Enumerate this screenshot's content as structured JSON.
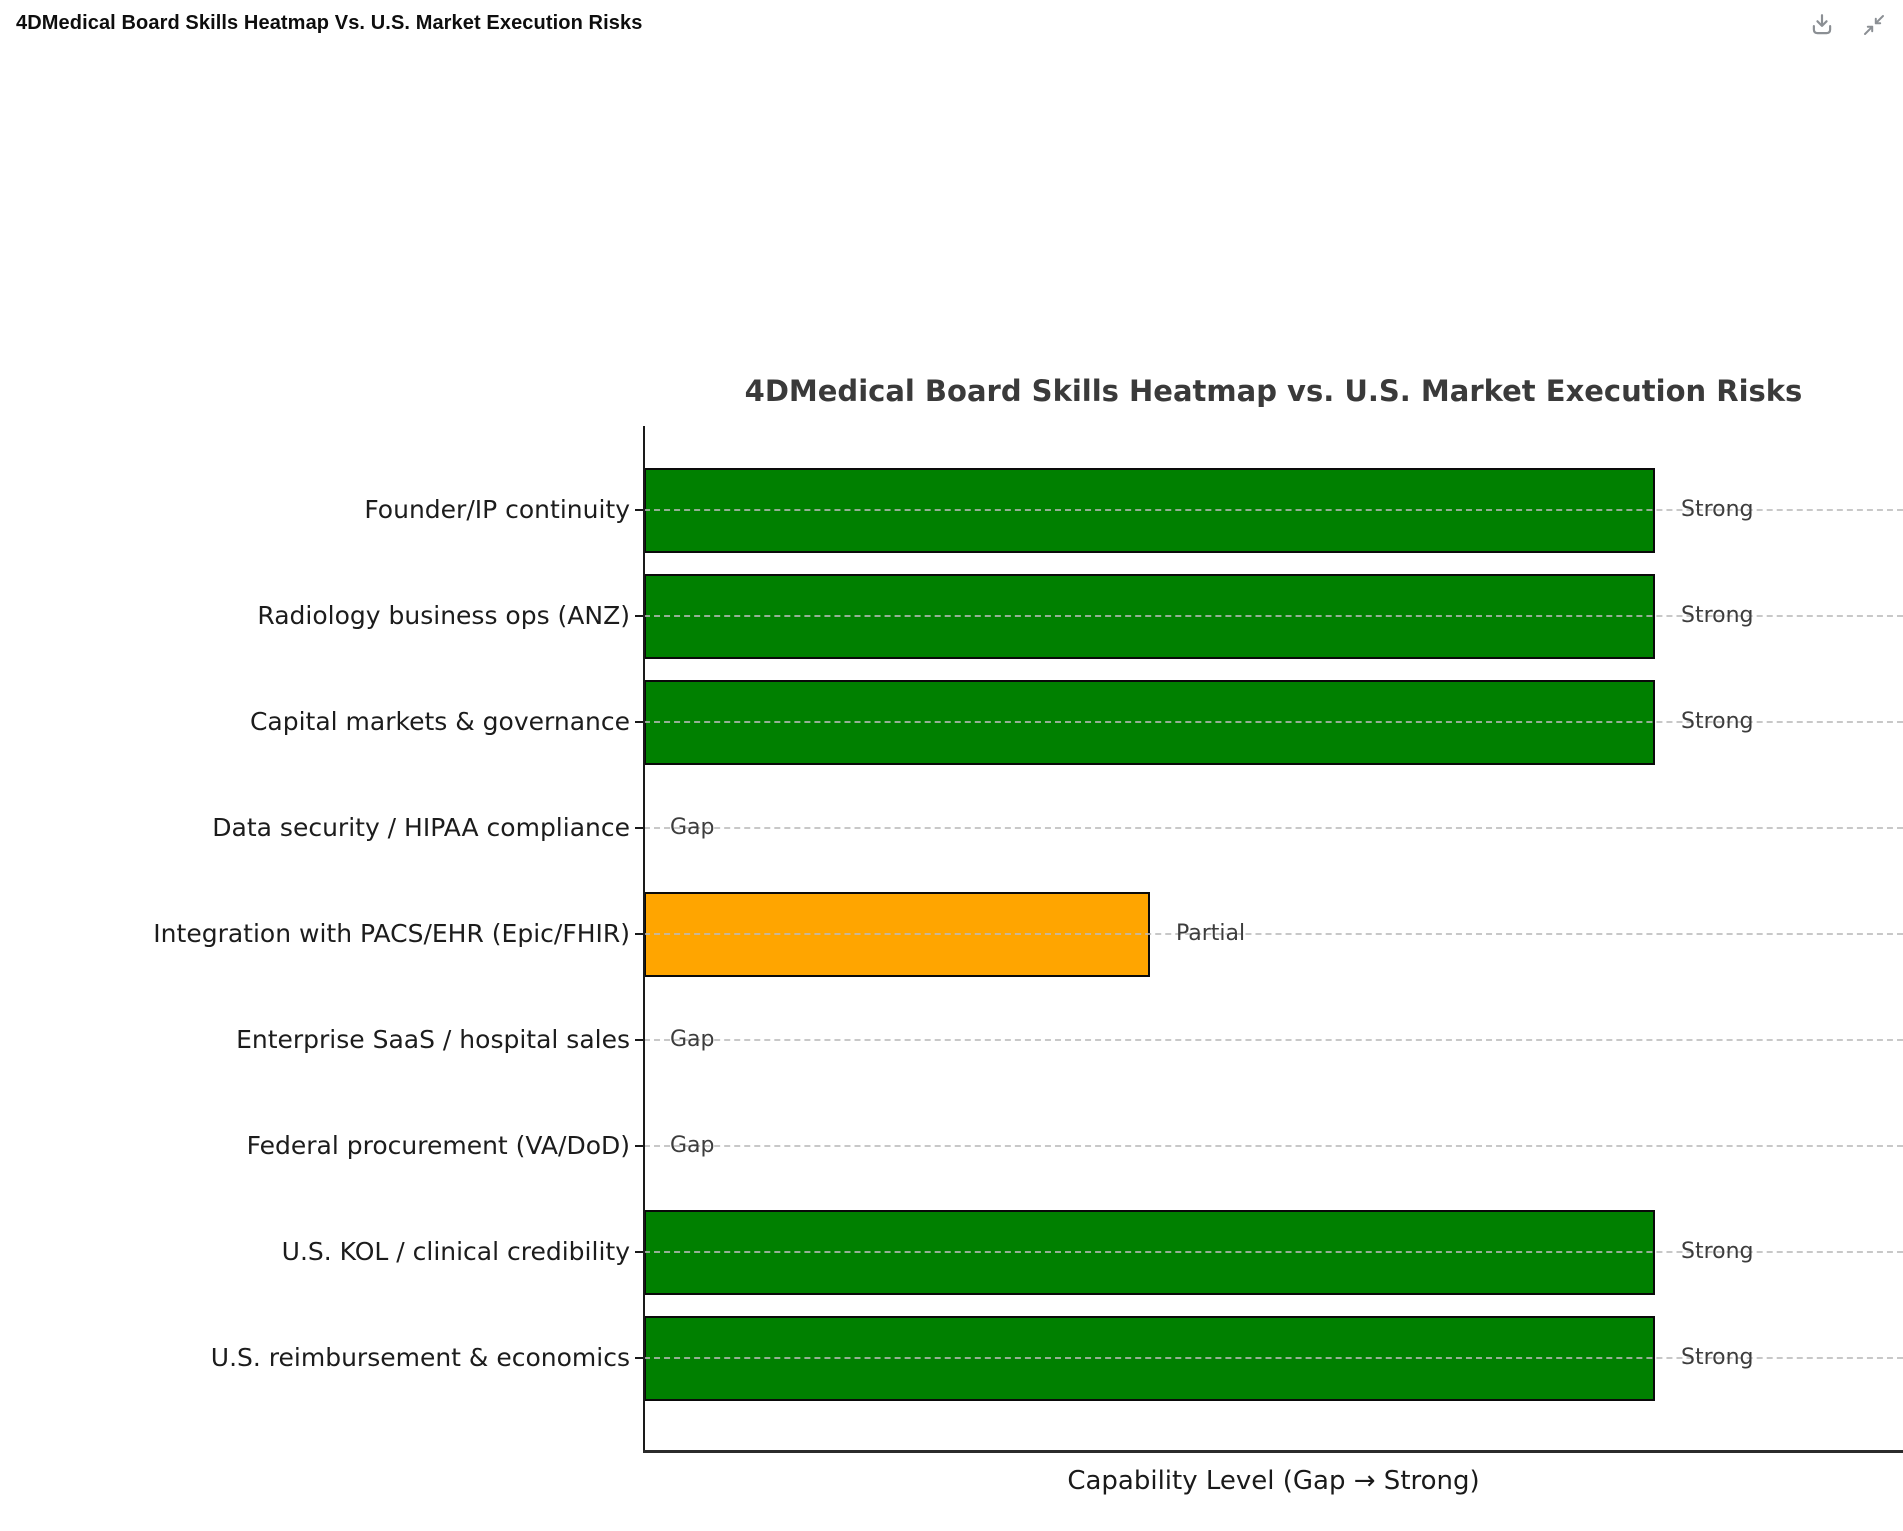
{
  "window": {
    "title": "4DMedical Board Skills Heatmap Vs. U.S. Market Execution Risks",
    "toolbar": [
      {
        "name": "download-icon",
        "action": "Download"
      },
      {
        "name": "collapse-icon",
        "action": "Collapse"
      }
    ]
  },
  "chart_data": {
    "type": "bar",
    "orientation": "horizontal",
    "title": "4DMedical Board Skills Heatmap vs. U.S. Market Execution Risks",
    "xlabel": "Capability Level (Gap → Strong)",
    "ylabel": "",
    "categories": [
      "Founder/IP continuity",
      "Radiology business ops (ANZ)",
      "Capital markets & governance",
      "Data security / HIPAA compliance",
      "Integration with PACS/EHR (Epic/FHIR)",
      "Enterprise SaaS / hospital sales",
      "Federal procurement (VA/DoD)",
      "U.S. KOL / clinical credibility",
      "U.S. reimbursement & economics"
    ],
    "values": [
      1.0,
      1.0,
      1.0,
      0.0,
      0.5,
      0.0,
      0.0,
      1.0,
      1.0
    ],
    "value_labels": [
      "Strong",
      "Strong",
      "Strong",
      "Gap",
      "Partial",
      "Gap",
      "Gap",
      "Strong",
      "Strong"
    ],
    "bar_colors": [
      "#008000",
      "#008000",
      "#008000",
      null,
      "#FFA500",
      null,
      null,
      "#008000",
      "#008000"
    ],
    "value_scale": {
      "Gap": 0.0,
      "Partial": 0.5,
      "Strong": 1.0
    },
    "xlim": [
      0,
      1.245
    ],
    "grid": "horizontal dashed gridlines per category, drawn over bars",
    "legend": "none",
    "colors": {
      "strong": "#008000",
      "partial": "#FFA500",
      "bar_border": "#0a0a0a",
      "gridline": "#bababa",
      "axis": "#1a1a1a",
      "title_text": "#3a3a3a",
      "category_text": "#1c1c1c",
      "value_text": "#3d3d3d"
    }
  }
}
